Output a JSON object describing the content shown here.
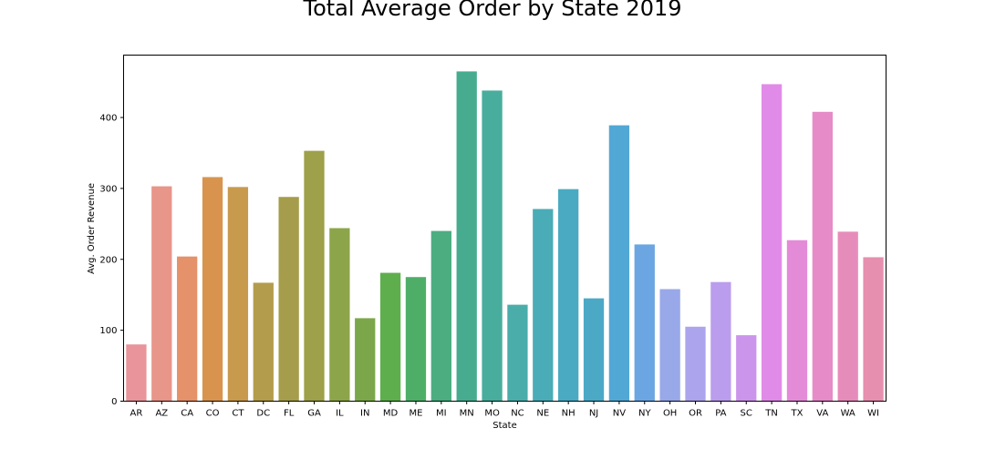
{
  "chart_data": {
    "type": "bar",
    "title": "Total Average Order by State 2019",
    "xlabel": "State",
    "ylabel": "Avg. Order Revenue",
    "ylim": [
      0,
      488
    ],
    "yticks": [
      0,
      100,
      200,
      300,
      400
    ],
    "grid": false,
    "categories": [
      "AR",
      "AZ",
      "CA",
      "CO",
      "CT",
      "DC",
      "FL",
      "GA",
      "IL",
      "IN",
      "MD",
      "ME",
      "MI",
      "MN",
      "MO",
      "NC",
      "NE",
      "NH",
      "NJ",
      "NV",
      "NY",
      "OH",
      "OR",
      "PA",
      "SC",
      "TN",
      "TX",
      "VA",
      "WA",
      "WI"
    ],
    "values": [
      80,
      303,
      204,
      316,
      302,
      167,
      288,
      353,
      244,
      117,
      181,
      175,
      240,
      465,
      438,
      136,
      271,
      299,
      145,
      389,
      221,
      158,
      105,
      168,
      93,
      447,
      227,
      408,
      239,
      203
    ],
    "colors": [
      "#e8949a",
      "#e8958a",
      "#e5916a",
      "#d8944f",
      "#c79a4e",
      "#b39c4c",
      "#a59d4b",
      "#9ea04a",
      "#8ca54a",
      "#7ba74a",
      "#5eae4d",
      "#4eae68",
      "#4bad80",
      "#47ac8f",
      "#48ad9d",
      "#4aadaa",
      "#4aacb6",
      "#4aaac2",
      "#4ba9c6",
      "#52a8d5",
      "#6ba6e2",
      "#98a8e8",
      "#aca4ec",
      "#bb9ded",
      "#cc95ec",
      "#e18be8",
      "#e48bd8",
      "#e68bc8",
      "#e68cbb",
      "#e68fae"
    ]
  }
}
